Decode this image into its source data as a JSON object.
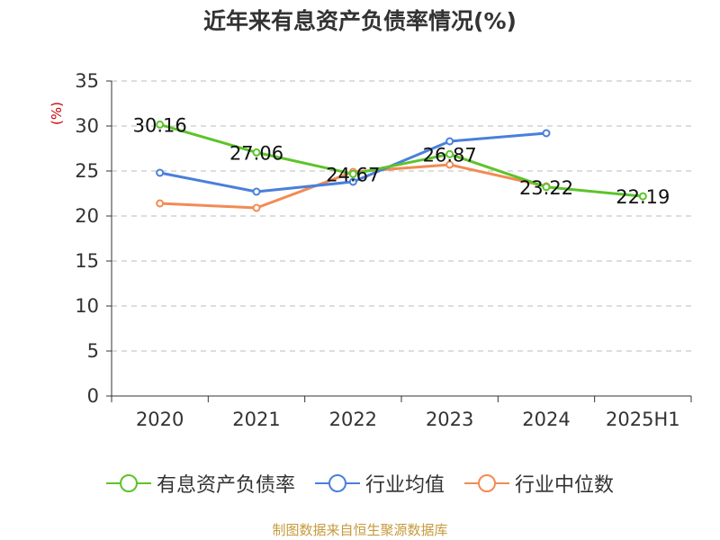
{
  "title": "近年来有息资产负债率情况(%)",
  "source": "制图数据来自恒生聚源数据库",
  "chart_data": {
    "type": "line",
    "title": "近年来有息资产负债率情况(%)",
    "ylabel": "(%)",
    "xlabel": "",
    "categories": [
      "2020",
      "2021",
      "2022",
      "2023",
      "2024",
      "2025H1"
    ],
    "ylim": [
      0,
      35
    ],
    "yticks": [
      0,
      5,
      10,
      15,
      20,
      25,
      30,
      35
    ],
    "grid": true,
    "legend_position": "bottom",
    "series": [
      {
        "name": "有息资产负债率",
        "color": "#5cc42a",
        "values": [
          30.16,
          27.06,
          24.67,
          26.87,
          23.22,
          22.19
        ],
        "labels": [
          "30.16",
          "27.06",
          "24.67",
          "26.87",
          "23.22",
          "22.19"
        ]
      },
      {
        "name": "行业均值",
        "color": "#4a7fdb",
        "values": [
          24.8,
          22.7,
          23.8,
          28.3,
          29.2,
          null
        ]
      },
      {
        "name": "行业中位数",
        "color": "#f28b54",
        "values": [
          21.4,
          20.9,
          24.9,
          25.7,
          23.3,
          null
        ]
      }
    ]
  }
}
